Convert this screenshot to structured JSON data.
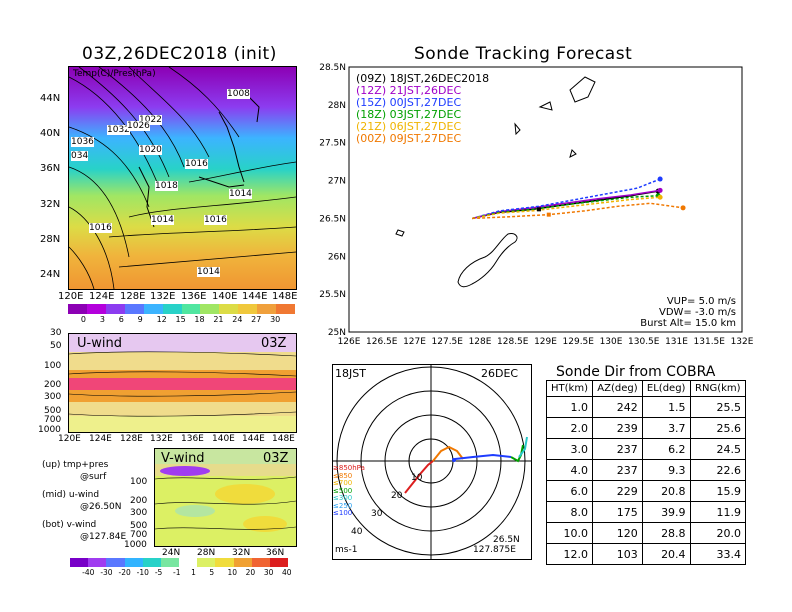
{
  "map_title": "03Z,26DEC2018 (init)",
  "map_inner_title": "Temp(C)/Pres(hPa)",
  "map_lat_labels": [
    "44N",
    "40N",
    "36N",
    "32N",
    "28N",
    "24N"
  ],
  "map_lon_labels": [
    "120E",
    "124E",
    "128E",
    "132E",
    "136E",
    "140E",
    "144E",
    "148E"
  ],
  "map_isobar_labels": [
    "1008",
    "1022",
    "1032",
    "1026",
    "1036",
    "1020",
    "034",
    "1016",
    "1018",
    "1014",
    "1014",
    "1016",
    "1016",
    "1014"
  ],
  "temp_colorbar": {
    "ticks": [
      "0",
      "3",
      "6",
      "9",
      "12",
      "15",
      "18",
      "21",
      "24",
      "27",
      "30"
    ],
    "colors": [
      "#8c00b4",
      "#b400dc",
      "#8c3cf0",
      "#5a78ff",
      "#3cb4ff",
      "#28d2c8",
      "#50e6a0",
      "#a0e664",
      "#dcdc46",
      "#f0c83c",
      "#f0a03c",
      "#f07832"
    ]
  },
  "uwind": {
    "label": "U-wind",
    "time": "03Z",
    "y_ticks": [
      "30",
      "50",
      "100",
      "200",
      "300",
      "500",
      "700",
      "1000"
    ],
    "x_ticks": [
      "120E",
      "124E",
      "128E",
      "132E",
      "136E",
      "140E",
      "144E",
      "148E"
    ]
  },
  "vwind": {
    "label": "V-wind",
    "time": "03Z",
    "y_ticks": [
      "100",
      "200",
      "300",
      "500",
      "700",
      "1000"
    ],
    "x_ticks": [
      "24N",
      "28N",
      "32N",
      "36N"
    ]
  },
  "legend_text": {
    "up": "(up) tmp+pres",
    "up2": "@surf",
    "mid": "(mid) u-wind",
    "mid2": "@26.50N",
    "bot": "(bot) v-wind",
    "bot2": "@127.84E"
  },
  "wind_colorbar": {
    "ticks": [
      "-40",
      "-30",
      "-20",
      "-10",
      "-5",
      "-1",
      "1",
      "5",
      "10",
      "20",
      "30",
      "40"
    ],
    "colors": [
      "#7800c8",
      "#a03cf0",
      "#5a78ff",
      "#32b4ff",
      "#28d2c8",
      "#78e6a0",
      "#ffffff",
      "#dcf064",
      "#f0dc3c",
      "#f0a032",
      "#f06432",
      "#dc1e1e"
    ]
  },
  "track_title": "Sonde Tracking Forecast",
  "track_legend": [
    {
      "text": "(09Z)  18JST,26DEC2018",
      "color": "#000000"
    },
    {
      "text": "(12Z)  21JST,26DEC",
      "color": "#a000c8"
    },
    {
      "text": "(15Z)  00JST,27DEC",
      "color": "#1e3cff"
    },
    {
      "text": "(18Z)  03JST,27DEC",
      "color": "#00a000"
    },
    {
      "text": "(21Z)  06JST,27DEC",
      "color": "#f0b400"
    },
    {
      "text": "(00Z)  09JST,27DEC",
      "color": "#f07800"
    }
  ],
  "track_params": {
    "vup": "VUP=  5.0  m/s",
    "vdw": "VDW=  -3.0  m/s",
    "burst": "Burst Alt=  15.0  km"
  },
  "chart_data": {
    "type": "line",
    "title": "Sonde Tracking Forecast",
    "xlim": [
      126,
      132
    ],
    "ylim": [
      25,
      28.5
    ],
    "x_ticks": [
      "126E",
      "126.5E",
      "127E",
      "127.5E",
      "128E",
      "128.5E",
      "129E",
      "129.5E",
      "130E",
      "130.5E",
      "131E",
      "131.5E",
      "132E"
    ],
    "y_ticks": [
      "25N",
      "25.5N",
      "26N",
      "26.5N",
      "27N",
      "27.5N",
      "28N",
      "28.5N"
    ],
    "series": [
      {
        "name": "(09Z)  18JST,26DEC2018",
        "color": "#000000",
        "x": [
          127.88,
          128.3,
          128.8,
          129.3,
          129.8,
          130.3,
          130.72
        ],
        "y": [
          26.5,
          26.58,
          26.62,
          26.68,
          26.74,
          26.8,
          26.86
        ],
        "end": [
          130.72,
          26.86
        ]
      },
      {
        "name": "(12Z)  21JST,26DEC",
        "color": "#a000c8",
        "x": [
          127.88,
          128.3,
          128.8,
          129.3,
          129.8,
          130.3,
          130.75
        ],
        "y": [
          26.5,
          26.59,
          26.64,
          26.7,
          26.76,
          26.81,
          26.87
        ],
        "end": [
          130.75,
          26.87
        ]
      },
      {
        "name": "(15Z)  00JST,27DEC",
        "color": "#1e3cff",
        "x": [
          127.88,
          128.3,
          128.9,
          129.4,
          129.9,
          130.4,
          130.75
        ],
        "y": [
          26.5,
          26.6,
          26.66,
          26.74,
          26.82,
          26.9,
          27.02
        ],
        "end": [
          130.75,
          27.02
        ]
      },
      {
        "name": "(18Z)  03JST,27DEC",
        "color": "#00a000",
        "x": [
          127.88,
          128.3,
          128.8,
          129.3,
          129.8,
          130.3,
          130.72
        ],
        "y": [
          26.5,
          26.58,
          26.62,
          26.68,
          26.73,
          26.78,
          26.8
        ],
        "end": [
          130.72,
          26.8
        ]
      },
      {
        "name": "(21Z)  06JST,27DEC",
        "color": "#f0b400",
        "x": [
          127.88,
          128.3,
          128.8,
          129.3,
          129.8,
          130.3,
          130.75
        ],
        "y": [
          26.5,
          26.57,
          26.6,
          26.65,
          26.7,
          26.75,
          26.78
        ],
        "end": [
          130.75,
          26.78
        ]
      },
      {
        "name": "(00Z)  09JST,27DEC",
        "color": "#f07800",
        "x": [
          127.88,
          128.4,
          129.05,
          129.6,
          130.1,
          130.6,
          131.1
        ],
        "y": [
          26.5,
          26.52,
          26.55,
          26.6,
          26.66,
          26.7,
          26.64
        ],
        "end": [
          131.1,
          26.64
        ]
      }
    ]
  },
  "polar": {
    "time": "18JST",
    "date": "26DEC",
    "units": "ms-1",
    "lat": "26.5N",
    "lon": "127.875E",
    "ring_labels": [
      "10",
      "20",
      "30",
      "40"
    ],
    "pressure_legend": [
      {
        "text": "≥850hPa",
        "color": "#dc1e1e"
      },
      {
        "text": "≤850",
        "color": "#f07800"
      },
      {
        "text": "≤700",
        "color": "#f0b400"
      },
      {
        "text": "≤500",
        "color": "#00a000"
      },
      {
        "text": "≤300",
        "color": "#28c8c8"
      },
      {
        "text": "≤250",
        "color": "#28a0f0"
      },
      {
        "text": "≤100",
        "color": "#1e3cff"
      }
    ]
  },
  "sonde_table": {
    "title": "Sonde Dir from COBRA",
    "headers": [
      "HT(km)",
      "AZ(deg)",
      "EL(deg)",
      "RNG(km)"
    ],
    "rows": [
      [
        "1.0",
        "242",
        "1.5",
        "25.5"
      ],
      [
        "2.0",
        "239",
        "3.7",
        "25.6"
      ],
      [
        "3.0",
        "237",
        "6.2",
        "24.5"
      ],
      [
        "4.0",
        "237",
        "9.3",
        "22.6"
      ],
      [
        "6.0",
        "229",
        "20.8",
        "15.9"
      ],
      [
        "8.0",
        "175",
        "39.9",
        "11.9"
      ],
      [
        "10.0",
        "120",
        "28.8",
        "20.0"
      ],
      [
        "12.0",
        "103",
        "20.4",
        "33.4"
      ]
    ]
  }
}
